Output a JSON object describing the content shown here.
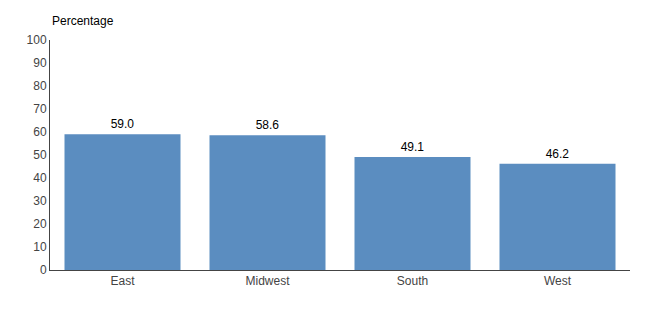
{
  "chart_data": {
    "type": "bar",
    "ylabel": "Percentage",
    "categories": [
      "East",
      "Midwest",
      "South",
      "West"
    ],
    "values": [
      59.0,
      58.6,
      49.1,
      46.2
    ],
    "value_labels": [
      "59.0",
      "58.6",
      "49.1",
      "46.2"
    ],
    "color": "#5b8dc0",
    "ylim": [
      0,
      100
    ],
    "yticks": [
      0,
      10,
      20,
      30,
      40,
      50,
      60,
      70,
      80,
      90,
      100
    ],
    "grid": false,
    "data_labels": true
  }
}
